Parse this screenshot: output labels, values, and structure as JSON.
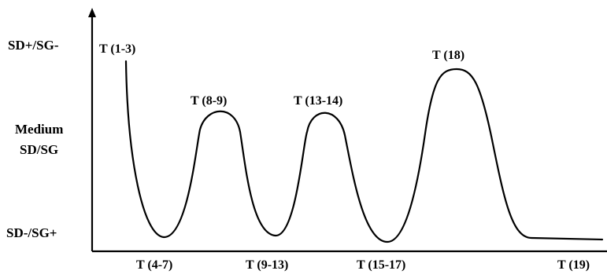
{
  "diagram": {
    "y_axis_levels": {
      "top": "SD+/SG-",
      "middle_line1": "Medium",
      "middle_line2": "SD/SG",
      "bottom": "SD-/SG+"
    },
    "peak_labels": [
      "T (1-3)",
      "T (8-9)",
      "T (13-14)",
      "T (18)"
    ],
    "valley_labels": [
      "T (4-7)",
      "T (9-13)",
      "T (15-17)",
      "T (19)"
    ],
    "colors": {
      "line": "#000000",
      "background": "#ffffff"
    }
  }
}
